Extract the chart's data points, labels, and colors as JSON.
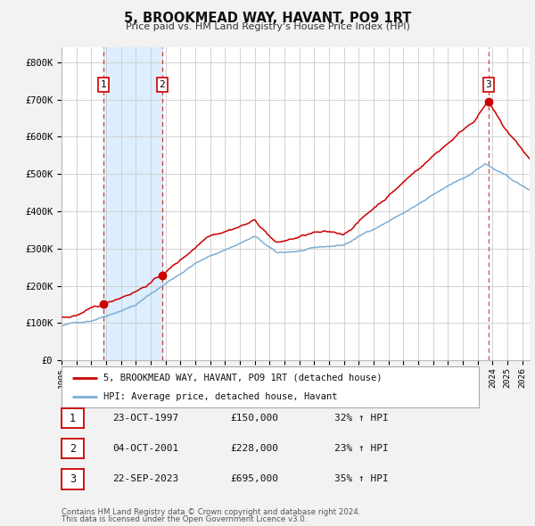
{
  "title": "5, BROOKMEAD WAY, HAVANT, PO9 1RT",
  "subtitle": "Price paid vs. HM Land Registry's House Price Index (HPI)",
  "xlim": [
    1995.0,
    2026.5
  ],
  "ylim": [
    0,
    840000
  ],
  "yticks": [
    0,
    100000,
    200000,
    300000,
    400000,
    500000,
    600000,
    700000,
    800000
  ],
  "ytick_labels": [
    "£0",
    "£100K",
    "£200K",
    "£300K",
    "£400K",
    "£500K",
    "£600K",
    "£700K",
    "£800K"
  ],
  "xtick_years": [
    1995,
    1996,
    1997,
    1998,
    1999,
    2000,
    2001,
    2002,
    2003,
    2004,
    2005,
    2006,
    2007,
    2008,
    2009,
    2010,
    2011,
    2012,
    2013,
    2014,
    2015,
    2016,
    2017,
    2018,
    2019,
    2020,
    2021,
    2022,
    2023,
    2024,
    2025,
    2026
  ],
  "red_line_color": "#cc0000",
  "blue_line_color": "#7bafd4",
  "sale_marker_color": "#cc0000",
  "transactions": [
    {
      "num": 1,
      "date": "23-OCT-1997",
      "price": 150000,
      "pct": "32%",
      "x": 1997.8
    },
    {
      "num": 2,
      "date": "04-OCT-2001",
      "price": 228000,
      "pct": "23%",
      "x": 2001.76
    },
    {
      "num": 3,
      "date": "22-SEP-2023",
      "price": 695000,
      "pct": "35%",
      "x": 2023.72
    }
  ],
  "legend_red_label": "5, BROOKMEAD WAY, HAVANT, PO9 1RT (detached house)",
  "legend_blue_label": "HPI: Average price, detached house, Havant",
  "footer1": "Contains HM Land Registry data © Crown copyright and database right 2024.",
  "footer2": "This data is licensed under the Open Government Licence v3.0.",
  "background_color": "#f2f2f2",
  "plot_bg_color": "#ffffff",
  "shade_color": "#ddeeff"
}
